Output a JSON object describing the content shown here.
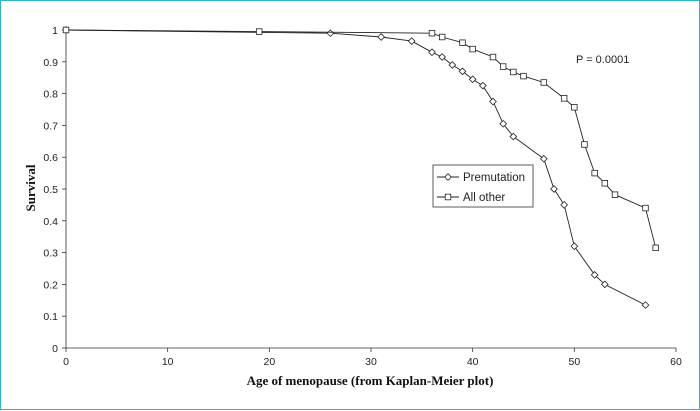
{
  "chart_data": {
    "type": "line",
    "title": "",
    "xlabel": "Age of menopause (from Kaplan-Meier plot)",
    "ylabel": "Survival",
    "xlim": [
      0,
      60
    ],
    "ylim": [
      0,
      1
    ],
    "x_ticks": [
      "0",
      "10",
      "20",
      "30",
      "40",
      "50",
      "60"
    ],
    "y_ticks": [
      "0",
      "0.1",
      "0.2",
      "0.3",
      "0.4",
      "0.5",
      "0.6",
      "0.7",
      "0.8",
      "0.9",
      "1"
    ],
    "grid": false,
    "legend_position": "right-middle",
    "annotation": "P = 0.0001",
    "series": [
      {
        "name": "Premutation",
        "marker": "diamond",
        "points": [
          [
            0,
            1.0
          ],
          [
            26,
            0.99
          ],
          [
            31,
            0.978
          ],
          [
            34,
            0.965
          ],
          [
            36,
            0.93
          ],
          [
            37,
            0.915
          ],
          [
            38,
            0.89
          ],
          [
            39,
            0.87
          ],
          [
            40,
            0.845
          ],
          [
            41,
            0.825
          ],
          [
            42,
            0.775
          ],
          [
            43,
            0.705
          ],
          [
            44,
            0.665
          ],
          [
            47,
            0.595
          ],
          [
            48,
            0.5
          ],
          [
            49,
            0.45
          ],
          [
            50,
            0.32
          ],
          [
            52,
            0.23
          ],
          [
            53,
            0.2
          ],
          [
            57,
            0.135
          ]
        ]
      },
      {
        "name": "All other",
        "marker": "square",
        "points": [
          [
            0,
            1.0
          ],
          [
            19,
            0.995
          ],
          [
            36,
            0.99
          ],
          [
            37,
            0.978
          ],
          [
            39,
            0.96
          ],
          [
            40,
            0.94
          ],
          [
            42,
            0.915
          ],
          [
            43,
            0.885
          ],
          [
            44,
            0.868
          ],
          [
            45,
            0.855
          ],
          [
            47,
            0.835
          ],
          [
            49,
            0.785
          ],
          [
            50,
            0.757
          ],
          [
            51,
            0.64
          ],
          [
            52,
            0.55
          ],
          [
            53,
            0.518
          ],
          [
            54,
            0.482
          ],
          [
            57,
            0.44
          ],
          [
            58,
            0.315
          ]
        ]
      }
    ]
  }
}
